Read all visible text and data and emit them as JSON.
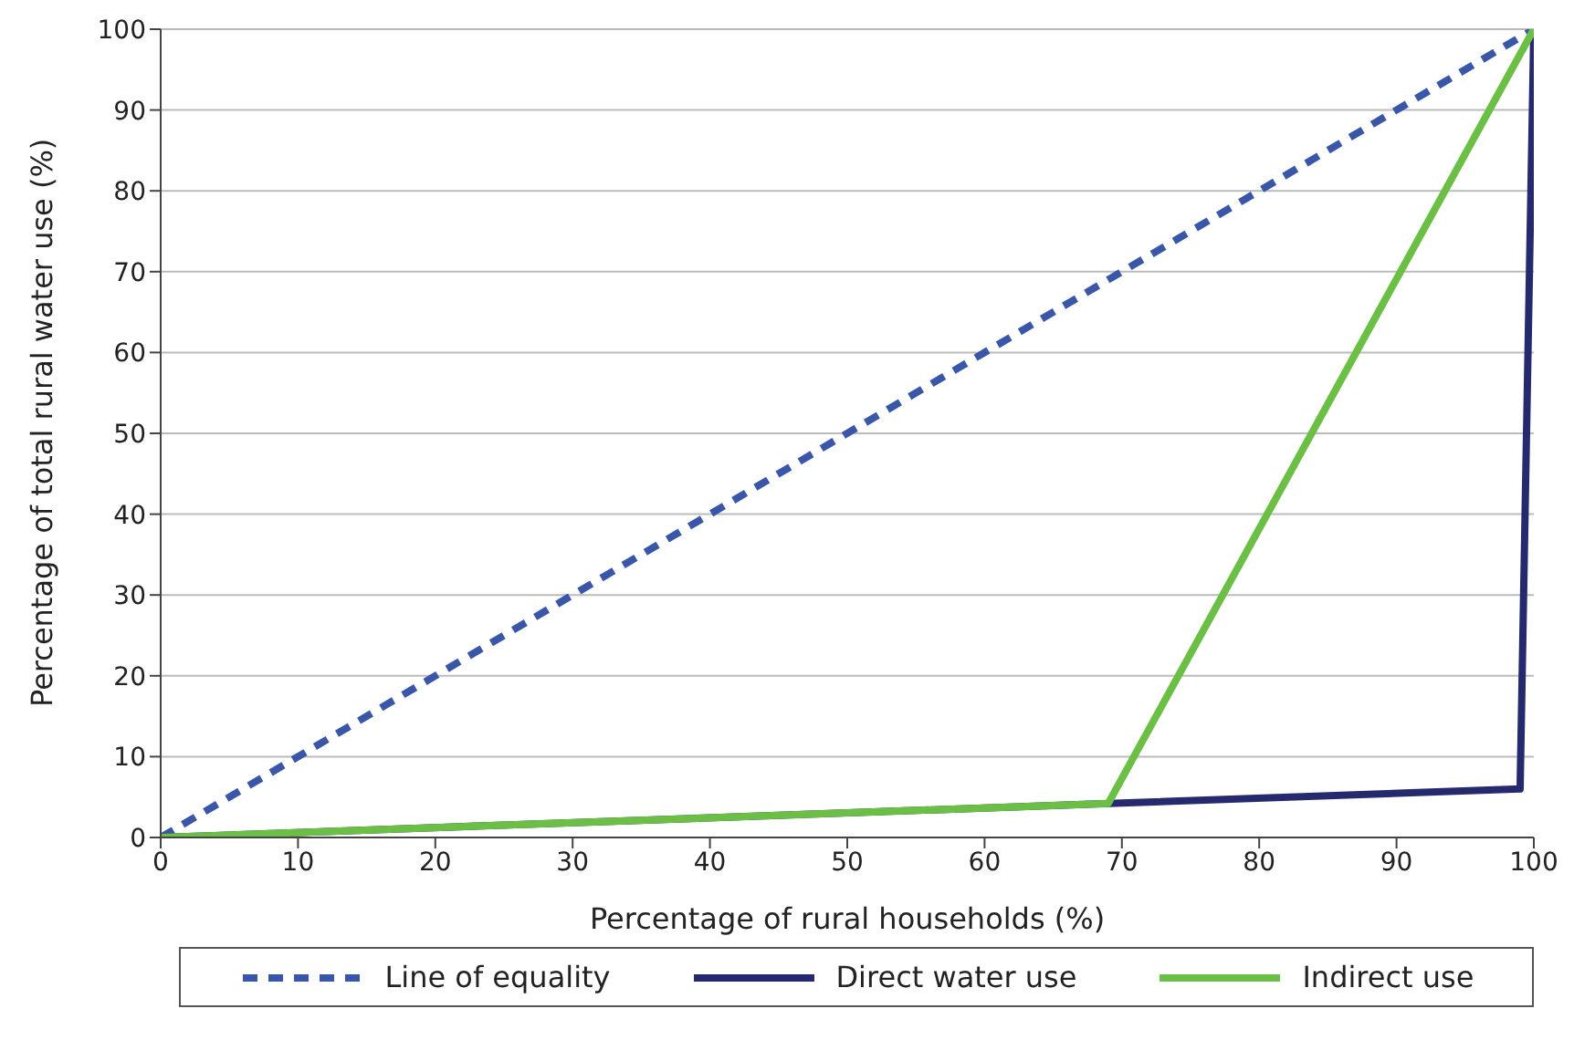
{
  "chart_data": {
    "type": "line",
    "xlabel": "Percentage of rural households (%)",
    "ylabel": "Percentage of total rural water use (%)",
    "xlim": [
      0,
      100
    ],
    "xticks": [
      0,
      10,
      20,
      30,
      40,
      50,
      60,
      70,
      80,
      90,
      100
    ],
    "ylim": [
      0,
      100
    ],
    "yticks": [
      0,
      10,
      20,
      30,
      40,
      50,
      60,
      70,
      80,
      90,
      100
    ],
    "grid": "y",
    "legend": "bottom",
    "marker": "none",
    "series": [
      {
        "name": "Line of equality",
        "color": "#3a56a8",
        "line_style": "dashed",
        "x": [
          0,
          100
        ],
        "values": [
          0,
          100
        ]
      },
      {
        "name": "Direct water use",
        "color": "#252a6e",
        "line_style": "solid",
        "x": [
          0,
          69,
          99,
          100
        ],
        "values": [
          0,
          4.2,
          6,
          100
        ]
      },
      {
        "name": "Indirect use",
        "color": "#6cbf45",
        "line_style": "solid",
        "x": [
          0,
          69,
          100
        ],
        "values": [
          0,
          4.2,
          100
        ]
      }
    ]
  }
}
